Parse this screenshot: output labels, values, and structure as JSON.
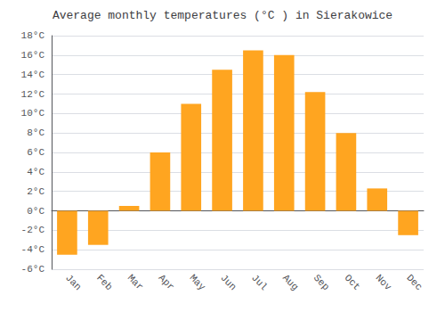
{
  "chart_data": {
    "type": "bar",
    "title": "Average monthly temperatures (°C ) in Sierakowice",
    "categories": [
      "Jan",
      "Feb",
      "Mar",
      "Apr",
      "May",
      "Jun",
      "Jul",
      "Aug",
      "Sep",
      "Oct",
      "Nov",
      "Dec"
    ],
    "values": [
      -4.5,
      -3.5,
      0.5,
      6.0,
      11.0,
      14.5,
      16.5,
      16.0,
      12.2,
      8.0,
      2.3,
      -2.5
    ],
    "color": "#FFA520",
    "ylim": [
      -6,
      18
    ],
    "yticks": [
      {
        "value": -6,
        "label": "-6°C"
      },
      {
        "value": -4,
        "label": "-4°C"
      },
      {
        "value": -2,
        "label": "-2°C"
      },
      {
        "value": 0,
        "label": "0°C"
      },
      {
        "value": 2,
        "label": "2°C"
      },
      {
        "value": 4,
        "label": "4°C"
      },
      {
        "value": 6,
        "label": "6°C"
      },
      {
        "value": 8,
        "label": "8°C"
      },
      {
        "value": 10,
        "label": "10°C"
      },
      {
        "value": 12,
        "label": "12°C"
      },
      {
        "value": 14,
        "label": "14°C"
      },
      {
        "value": 16,
        "label": "16°C"
      },
      {
        "value": 18,
        "label": "18°C"
      }
    ],
    "grid": true
  }
}
